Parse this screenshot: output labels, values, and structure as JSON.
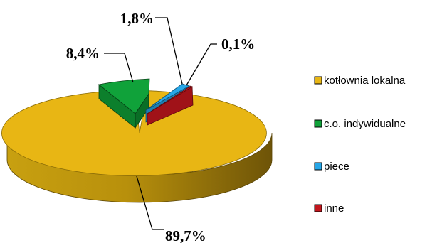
{
  "chart_data": {
    "type": "pie",
    "style": "3d-exploded",
    "slices": [
      {
        "name": "kotłownia lokalna",
        "value": 89.7,
        "label": "89,7%",
        "color": "#e8b614"
      },
      {
        "name": "c.o. indywidualne",
        "value": 8.4,
        "label": "8,4%",
        "color": "#10a23a"
      },
      {
        "name": "piece",
        "value": 1.8,
        "label": "1,8%",
        "color": "#27a7e8"
      },
      {
        "name": "inne",
        "value": 0.1,
        "label": "0,1%",
        "color": "#c2161d"
      }
    ],
    "legend": {
      "position": "right",
      "entries": [
        "kotłownia lokalna",
        "c.o. indywidualne",
        "piece",
        "inne"
      ]
    }
  }
}
